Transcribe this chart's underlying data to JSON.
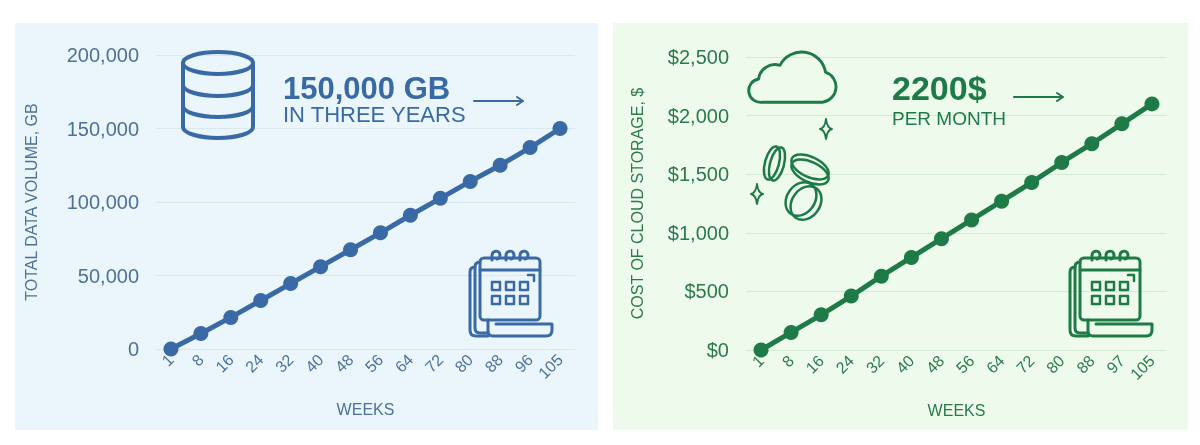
{
  "chart_data": [
    {
      "type": "line",
      "xlabel": "WEEKS",
      "ylabel": "TOTAL DATA VOLUME, GB",
      "categories": [
        "1",
        "8",
        "16",
        "24",
        "32",
        "40",
        "48",
        "56",
        "64",
        "72",
        "80",
        "88",
        "96",
        "105"
      ],
      "values": [
        0,
        10500,
        21500,
        33000,
        44500,
        56000,
        67500,
        79000,
        91000,
        102500,
        114000,
        125000,
        137000,
        150000
      ],
      "color": "#3a6aa6",
      "ylim": [
        0,
        200000
      ],
      "yticks": [
        0,
        {
          "value": 50000,
          "label": "50,000"
        },
        {
          "value": 100000,
          "label": "100,000"
        },
        {
          "value": 150000,
          "label": "150,000"
        },
        {
          "value": 200000,
          "label": "200,000"
        }
      ],
      "grid": "y",
      "marker": "circle",
      "annotations": [
        "150,000 GB",
        "IN THREE YEARS"
      ]
    },
    {
      "type": "line",
      "xlabel": "WEEKS",
      "ylabel": "COST OF CLOUD STORAGE, $",
      "categories": [
        "1",
        "8",
        "16",
        "24",
        "32",
        "40",
        "48",
        "56",
        "64",
        "72",
        "80",
        "88",
        "97",
        "105"
      ],
      "values": [
        0,
        150,
        300,
        460,
        630,
        790,
        950,
        1110,
        1270,
        1430,
        1600,
        1760,
        1930,
        2100
      ],
      "color": "#1e7a46",
      "ylim": [
        0,
        2500
      ],
      "yticks": [
        {
          "value": 0,
          "label": "$0"
        },
        {
          "value": 500,
          "label": "$500"
        },
        {
          "value": 1000,
          "label": "$1,000"
        },
        {
          "value": 1500,
          "label": "$1,500"
        },
        {
          "value": 2000,
          "label": "$2,000"
        },
        {
          "value": 2500,
          "label": "$2,500"
        }
      ],
      "grid": "y",
      "marker": "circle",
      "annotations": [
        "2200$",
        "PER MONTH"
      ]
    }
  ]
}
